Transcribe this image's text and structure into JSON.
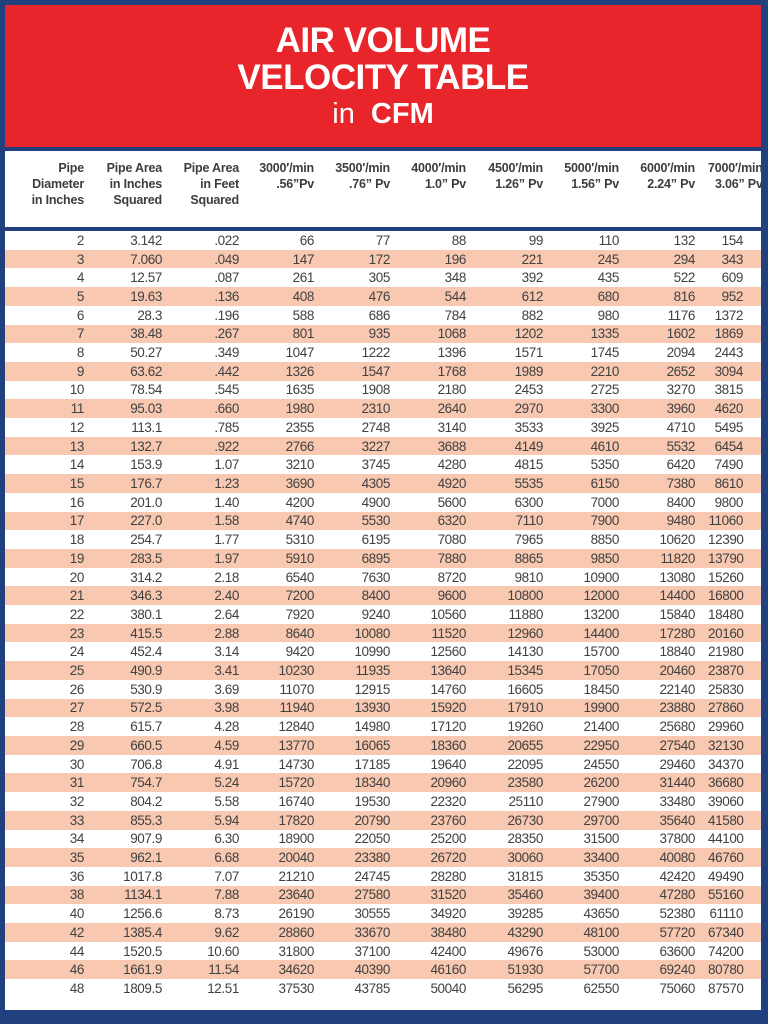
{
  "title": {
    "line1": "AIR VOLUME",
    "line2": "VELOCITY TABLE",
    "line3_prefix": "in",
    "line3_word": "CFM"
  },
  "colors": {
    "banner_red": "#e8252b",
    "border_navy": "#21407e",
    "stripe_salmon": "#f8c8b0",
    "text_dark": "#414141"
  },
  "table": {
    "headers": [
      {
        "lines": [
          "Pipe",
          "Diameter",
          "in Inches"
        ]
      },
      {
        "lines": [
          "Pipe Area",
          "in Inches",
          "Squared"
        ]
      },
      {
        "lines": [
          "Pipe Area",
          "in Feet",
          "Squared"
        ]
      },
      {
        "lines": [
          "3000′/min",
          ".56”Pv"
        ]
      },
      {
        "lines": [
          "3500′/min",
          ".76” Pv"
        ]
      },
      {
        "lines": [
          "4000′/min",
          "1.0” Pv"
        ]
      },
      {
        "lines": [
          "4500′/min",
          "1.26” Pv"
        ]
      },
      {
        "lines": [
          "5000′/min",
          "1.56” Pv"
        ]
      },
      {
        "lines": [
          "6000′/min",
          "2.24” Pv"
        ]
      },
      {
        "lines": [
          "7000′/min",
          "3.06” Pv"
        ]
      }
    ],
    "rows": [
      [
        "2",
        "3.142",
        ".022",
        "66",
        "77",
        "88",
        "99",
        "110",
        "132",
        "154"
      ],
      [
        "3",
        "7.060",
        ".049",
        "147",
        "172",
        "196",
        "221",
        "245",
        "294",
        "343"
      ],
      [
        "4",
        "12.57",
        ".087",
        "261",
        "305",
        "348",
        "392",
        "435",
        "522",
        "609"
      ],
      [
        "5",
        "19.63",
        ".136",
        "408",
        "476",
        "544",
        "612",
        "680",
        "816",
        "952"
      ],
      [
        "6",
        "28.3",
        ".196",
        "588",
        "686",
        "784",
        "882",
        "980",
        "1176",
        "1372"
      ],
      [
        "7",
        "38.48",
        ".267",
        "801",
        "935",
        "1068",
        "1202",
        "1335",
        "1602",
        "1869"
      ],
      [
        "8",
        "50.27",
        ".349",
        "1047",
        "1222",
        "1396",
        "1571",
        "1745",
        "2094",
        "2443"
      ],
      [
        "9",
        "63.62",
        ".442",
        "1326",
        "1547",
        "1768",
        "1989",
        "2210",
        "2652",
        "3094"
      ],
      [
        "10",
        "78.54",
        ".545",
        "1635",
        "1908",
        "2180",
        "2453",
        "2725",
        "3270",
        "3815"
      ],
      [
        "11",
        "95.03",
        ".660",
        "1980",
        "2310",
        "2640",
        "2970",
        "3300",
        "3960",
        "4620"
      ],
      [
        "12",
        "113.1",
        ".785",
        "2355",
        "2748",
        "3140",
        "3533",
        "3925",
        "4710",
        "5495"
      ],
      [
        "13",
        "132.7",
        ".922",
        "2766",
        "3227",
        "3688",
        "4149",
        "4610",
        "5532",
        "6454"
      ],
      [
        "14",
        "153.9",
        "1.07",
        "3210",
        "3745",
        "4280",
        "4815",
        "5350",
        "6420",
        "7490"
      ],
      [
        "15",
        "176.7",
        "1.23",
        "3690",
        "4305",
        "4920",
        "5535",
        "6150",
        "7380",
        "8610"
      ],
      [
        "16",
        "201.0",
        "1.40",
        "4200",
        "4900",
        "5600",
        "6300",
        "7000",
        "8400",
        "9800"
      ],
      [
        "17",
        "227.0",
        "1.58",
        "4740",
        "5530",
        "6320",
        "7110",
        "7900",
        "9480",
        "11060"
      ],
      [
        "18",
        "254.7",
        "1.77",
        "5310",
        "6195",
        "7080",
        "7965",
        "8850",
        "10620",
        "12390"
      ],
      [
        "19",
        "283.5",
        "1.97",
        "5910",
        "6895",
        "7880",
        "8865",
        "9850",
        "11820",
        "13790"
      ],
      [
        "20",
        "314.2",
        "2.18",
        "6540",
        "7630",
        "8720",
        "9810",
        "10900",
        "13080",
        "15260"
      ],
      [
        "21",
        "346.3",
        "2.40",
        "7200",
        "8400",
        "9600",
        "10800",
        "12000",
        "14400",
        "16800"
      ],
      [
        "22",
        "380.1",
        "2.64",
        "7920",
        "9240",
        "10560",
        "11880",
        "13200",
        "15840",
        "18480"
      ],
      [
        "23",
        "415.5",
        "2.88",
        "8640",
        "10080",
        "11520",
        "12960",
        "14400",
        "17280",
        "20160"
      ],
      [
        "24",
        "452.4",
        "3.14",
        "9420",
        "10990",
        "12560",
        "14130",
        "15700",
        "18840",
        "21980"
      ],
      [
        "25",
        "490.9",
        "3.41",
        "10230",
        "11935",
        "13640",
        "15345",
        "17050",
        "20460",
        "23870"
      ],
      [
        "26",
        "530.9",
        "3.69",
        "11070",
        "12915",
        "14760",
        "16605",
        "18450",
        "22140",
        "25830"
      ],
      [
        "27",
        "572.5",
        "3.98",
        "11940",
        "13930",
        "15920",
        "17910",
        "19900",
        "23880",
        "27860"
      ],
      [
        "28",
        "615.7",
        "4.28",
        "12840",
        "14980",
        "17120",
        "19260",
        "21400",
        "25680",
        "29960"
      ],
      [
        "29",
        "660.5",
        "4.59",
        "13770",
        "16065",
        "18360",
        "20655",
        "22950",
        "27540",
        "32130"
      ],
      [
        "30",
        "706.8",
        "4.91",
        "14730",
        "17185",
        "19640",
        "22095",
        "24550",
        "29460",
        "34370"
      ],
      [
        "31",
        "754.7",
        "5.24",
        "15720",
        "18340",
        "20960",
        "23580",
        "26200",
        "31440",
        "36680"
      ],
      [
        "32",
        "804.2",
        "5.58",
        "16740",
        "19530",
        "22320",
        "25110",
        "27900",
        "33480",
        "39060"
      ],
      [
        "33",
        "855.3",
        "5.94",
        "17820",
        "20790",
        "23760",
        "26730",
        "29700",
        "35640",
        "41580"
      ],
      [
        "34",
        "907.9",
        "6.30",
        "18900",
        "22050",
        "25200",
        "28350",
        "31500",
        "37800",
        "44100"
      ],
      [
        "35",
        "962.1",
        "6.68",
        "20040",
        "23380",
        "26720",
        "30060",
        "33400",
        "40080",
        "46760"
      ],
      [
        "36",
        "1017.8",
        "7.07",
        "21210",
        "24745",
        "28280",
        "31815",
        "35350",
        "42420",
        "49490"
      ],
      [
        "38",
        "1134.1",
        "7.88",
        "23640",
        "27580",
        "31520",
        "35460",
        "39400",
        "47280",
        "55160"
      ],
      [
        "40",
        "1256.6",
        "8.73",
        "26190",
        "30555",
        "34920",
        "39285",
        "43650",
        "52380",
        "61110"
      ],
      [
        "42",
        "1385.4",
        "9.62",
        "28860",
        "33670",
        "38480",
        "43290",
        "48100",
        "57720",
        "67340"
      ],
      [
        "44",
        "1520.5",
        "10.60",
        "31800",
        "37100",
        "42400",
        "49676",
        "53000",
        "63600",
        "74200"
      ],
      [
        "46",
        "1661.9",
        "11.54",
        "34620",
        "40390",
        "46160",
        "51930",
        "57700",
        "69240",
        "80780"
      ],
      [
        "48",
        "1809.5",
        "12.51",
        "37530",
        "43785",
        "50040",
        "56295",
        "62550",
        "75060",
        "87570"
      ]
    ]
  }
}
